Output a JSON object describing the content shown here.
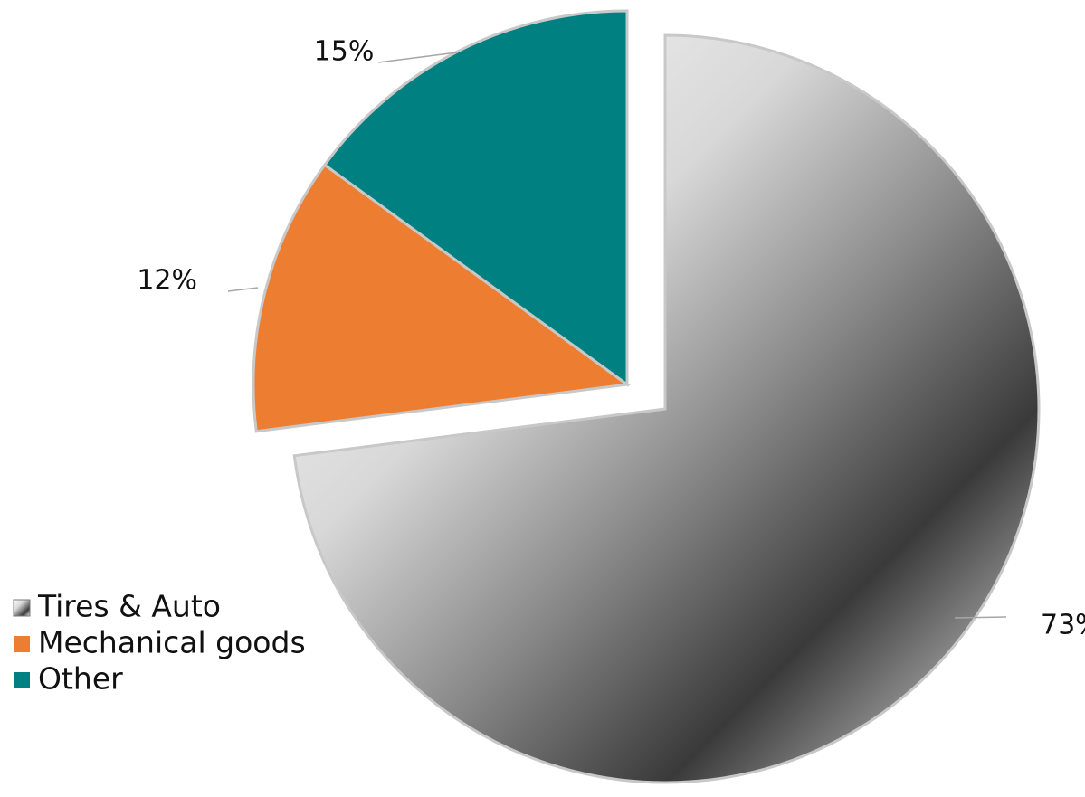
{
  "chart_data": {
    "type": "pie",
    "categories": [
      "Tires & Auto",
      "Mechanical goods",
      "Other"
    ],
    "values": [
      73,
      12,
      15
    ],
    "value_labels": [
      "73%",
      "12%",
      "15%"
    ],
    "colors": [
      "#8c8c8c",
      "#ed7d31",
      "#008080"
    ],
    "legend": "bottom-left"
  }
}
